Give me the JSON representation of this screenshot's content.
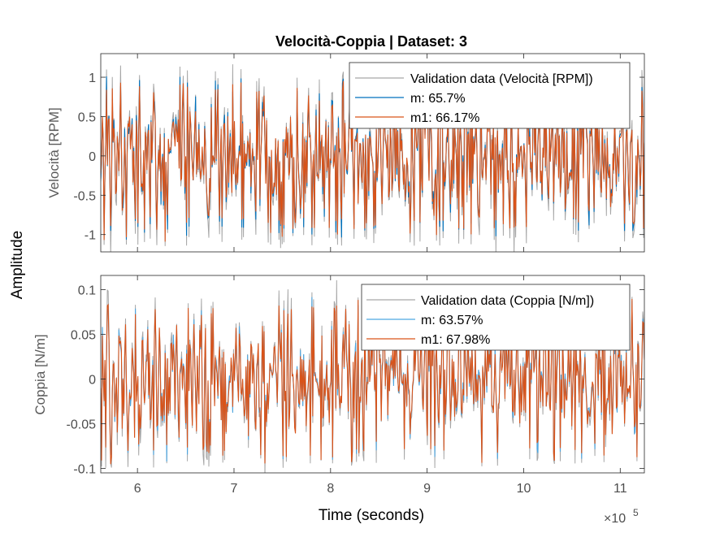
{
  "chart_data": {
    "type": "line",
    "title": "Velocità-Coppia | Dataset: 3",
    "shared_ylabel": "Amplitude",
    "xlabel": "Time (seconds)",
    "x_exponent_base": "×10",
    "x_exponent_power": "5",
    "xlim": [
      5.62,
      11.25
    ],
    "xticks": [
      6,
      7,
      8,
      9,
      10,
      11
    ],
    "xtick_labels": [
      "6",
      "7",
      "8",
      "9",
      "10",
      "11"
    ],
    "colors": {
      "validation": "#a6a6a6",
      "m_top": "#0072bd",
      "m_bottom": "#4da6e0",
      "m1": "#d95319"
    },
    "subplots": [
      {
        "ylabel": "Velocità [RPM]",
        "ylim": [
          -1.22,
          1.3
        ],
        "yticks": [
          -1,
          -0.5,
          0,
          0.5,
          1
        ],
        "ytick_labels": [
          "-1",
          "-0.5",
          "0",
          "0.5",
          "1"
        ],
        "legend_location": "top-right",
        "series": [
          {
            "name": "Validation data (Velocità [RPM])",
            "amplitude": 1.15
          },
          {
            "name": "m: 65.7%",
            "amplitude": 1.02
          },
          {
            "name": "m1: 66.17%",
            "amplitude": 1.0
          }
        ]
      },
      {
        "ylabel": "Coppia [N/m]",
        "ylim": [
          -0.105,
          0.116
        ],
        "yticks": [
          -0.1,
          -0.05,
          0,
          0.05,
          0.1
        ],
        "ytick_labels": [
          "-0.1",
          "-0.05",
          "0",
          "0.05",
          "0.1"
        ],
        "legend_location": "top-right",
        "series": [
          {
            "name": "Validation data (Coppia [N/m])",
            "amplitude": 0.1
          },
          {
            "name": "m: 63.57%",
            "amplitude": 0.09
          },
          {
            "name": "m1: 67.98%",
            "amplitude": 0.092
          }
        ]
      }
    ]
  }
}
